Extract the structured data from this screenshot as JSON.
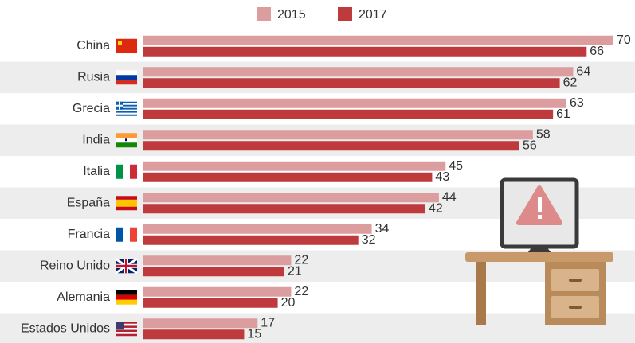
{
  "chart_data": {
    "type": "bar",
    "orientation": "horizontal",
    "categories": [
      "China",
      "Rusia",
      "Grecia",
      "India",
      "Italia",
      "España",
      "Francia",
      "Reino Unido",
      "Alemania",
      "Estados Unidos"
    ],
    "series": [
      {
        "name": "2015",
        "color": "#dc9d9f",
        "values": [
          70,
          64,
          63,
          58,
          45,
          44,
          34,
          22,
          22,
          17
        ]
      },
      {
        "name": "2017",
        "color": "#bf3a3d",
        "values": [
          66,
          62,
          61,
          56,
          43,
          42,
          32,
          21,
          20,
          15
        ]
      }
    ],
    "legend": "top"
  }
}
